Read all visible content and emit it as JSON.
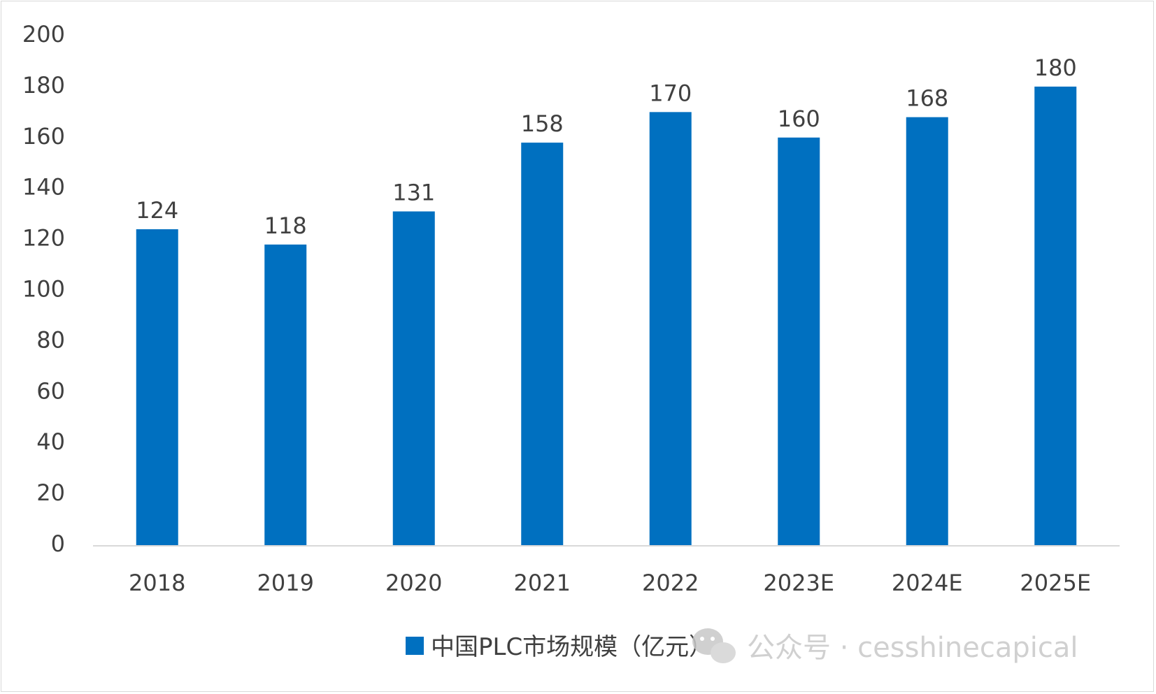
{
  "colors": {
    "bar": "#0070C0",
    "axis": "#d9d9d9",
    "text": "#404040",
    "watermark": "#c8c8c8"
  },
  "legend": {
    "label": "中国PLC市场规模（亿元）",
    "icon": "square-swatch"
  },
  "watermark": {
    "text": "公众号 · cesshinecapical",
    "icon": "wechat-logo-icon"
  },
  "chart_data": {
    "type": "bar",
    "categories": [
      "2018",
      "2019",
      "2020",
      "2021",
      "2022",
      "2023E",
      "2024E",
      "2025E"
    ],
    "series": [
      {
        "name": "中国PLC市场规模（亿元）",
        "values": [
          124,
          118,
          131,
          158,
          170,
          160,
          168,
          180
        ]
      }
    ],
    "ylim": [
      0,
      200
    ],
    "yticks": [
      0,
      20,
      40,
      60,
      80,
      100,
      120,
      140,
      160,
      180,
      200
    ],
    "data_labels": true,
    "grid": false,
    "legend_position": "bottom-right"
  }
}
